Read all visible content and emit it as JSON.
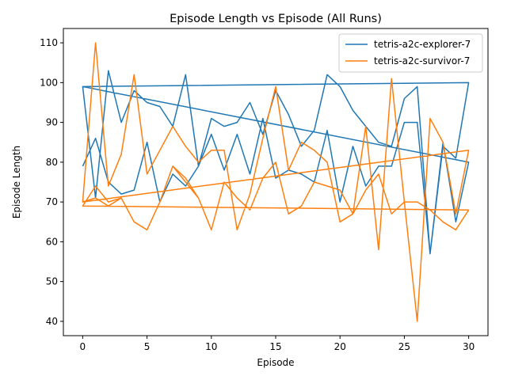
{
  "chart_data": {
    "type": "line",
    "title": "Episode Length vs Episode (All Runs)",
    "xlabel": "Episode",
    "ylabel": "Episode Length",
    "xlim": [
      -1.5,
      31.5
    ],
    "ylim": [
      36.4,
      113.6
    ],
    "xticks": [
      0,
      5,
      10,
      15,
      20,
      25,
      30
    ],
    "yticks": [
      40,
      50,
      60,
      70,
      80,
      90,
      100,
      110
    ],
    "grid": false,
    "legend_position": "top-right",
    "series": [
      {
        "name": "tetris-a2c-explorer-7",
        "color": "#1f77b4",
        "points": [
          [
            0,
            79
          ],
          [
            1,
            86
          ],
          [
            2,
            75
          ],
          [
            3,
            72
          ],
          [
            4,
            73
          ],
          [
            5,
            85
          ],
          [
            6,
            70
          ],
          [
            7,
            77
          ],
          [
            8,
            74
          ],
          [
            9,
            79
          ],
          [
            10,
            87
          ],
          [
            11,
            78
          ],
          [
            12,
            87
          ],
          [
            13,
            77
          ],
          [
            14,
            91
          ],
          [
            15,
            76
          ],
          [
            16,
            78
          ],
          [
            17,
            77
          ],
          [
            18,
            75
          ],
          [
            19,
            88
          ],
          [
            20,
            70
          ],
          [
            21,
            84
          ],
          [
            22,
            74
          ],
          [
            23,
            79
          ],
          [
            24,
            79
          ],
          [
            25,
            90
          ],
          [
            26,
            90
          ],
          [
            27,
            57
          ],
          [
            28,
            85
          ],
          [
            29,
            65
          ],
          [
            30,
            80
          ],
          [
            0,
            99
          ],
          [
            1,
            71
          ],
          [
            2,
            103
          ],
          [
            3,
            90
          ],
          [
            4,
            98
          ],
          [
            5,
            95
          ],
          [
            6,
            94
          ],
          [
            7,
            89
          ],
          [
            8,
            102
          ],
          [
            9,
            79
          ],
          [
            10,
            91
          ],
          [
            11,
            89
          ],
          [
            12,
            90
          ],
          [
            13,
            95
          ],
          [
            14,
            87
          ],
          [
            15,
            98
          ],
          [
            16,
            92
          ],
          [
            17,
            84
          ],
          [
            18,
            88
          ],
          [
            19,
            102
          ],
          [
            20,
            99
          ],
          [
            21,
            93
          ],
          [
            22,
            89
          ],
          [
            23,
            85
          ],
          [
            24,
            84
          ],
          [
            25,
            96
          ],
          [
            26,
            99
          ],
          [
            27,
            57
          ],
          [
            28,
            84
          ],
          [
            29,
            81
          ],
          [
            30,
            100
          ],
          [
            0,
            99
          ]
        ]
      },
      {
        "name": "tetris-a2c-survivor-7",
        "color": "#ff7f0e",
        "points": [
          [
            0,
            70
          ],
          [
            1,
            110
          ],
          [
            2,
            74
          ],
          [
            3,
            82
          ],
          [
            4,
            102
          ],
          [
            5,
            77
          ],
          [
            6,
            83
          ],
          [
            7,
            89
          ],
          [
            8,
            84
          ],
          [
            9,
            80
          ],
          [
            10,
            83
          ],
          [
            11,
            83
          ],
          [
            12,
            63
          ],
          [
            13,
            72
          ],
          [
            14,
            86
          ],
          [
            15,
            99
          ],
          [
            16,
            78
          ],
          [
            17,
            85
          ],
          [
            18,
            83
          ],
          [
            19,
            80
          ],
          [
            20,
            65
          ],
          [
            21,
            67
          ],
          [
            22,
            89
          ],
          [
            23,
            58
          ],
          [
            24,
            101
          ],
          [
            25,
            70
          ],
          [
            26,
            40
          ],
          [
            27,
            91
          ],
          [
            28,
            85
          ],
          [
            29,
            67
          ],
          [
            30,
            83
          ],
          [
            0,
            70
          ],
          [
            1,
            71
          ],
          [
            2,
            69
          ],
          [
            3,
            71
          ],
          [
            4,
            65
          ],
          [
            5,
            63
          ],
          [
            6,
            70
          ],
          [
            7,
            79
          ],
          [
            8,
            75
          ],
          [
            9,
            71
          ],
          [
            10,
            63
          ],
          [
            11,
            75
          ],
          [
            12,
            71
          ],
          [
            13,
            68
          ],
          [
            14,
            76
          ],
          [
            15,
            80
          ],
          [
            16,
            67
          ],
          [
            17,
            69
          ],
          [
            18,
            75
          ],
          [
            19,
            74
          ],
          [
            20,
            73
          ],
          [
            21,
            67
          ],
          [
            22,
            73
          ],
          [
            23,
            77
          ],
          [
            24,
            67
          ],
          [
            25,
            70
          ],
          [
            26,
            70
          ],
          [
            27,
            68
          ],
          [
            28,
            65
          ],
          [
            29,
            63
          ],
          [
            30,
            68
          ],
          [
            0,
            69
          ],
          [
            1,
            74
          ],
          [
            2,
            70
          ],
          [
            3,
            71
          ],
          [
            4,
            65
          ],
          [
            5,
            63
          ],
          [
            6,
            70
          ],
          [
            7,
            79
          ],
          [
            8,
            76
          ],
          [
            9,
            71
          ],
          [
            10,
            63
          ],
          [
            11,
            75
          ],
          [
            12,
            71
          ],
          [
            13,
            68
          ],
          [
            14,
            76
          ],
          [
            15,
            80
          ],
          [
            16,
            67
          ],
          [
            17,
            69
          ],
          [
            18,
            75
          ],
          [
            19,
            74
          ],
          [
            20,
            73
          ],
          [
            21,
            67
          ],
          [
            22,
            73
          ],
          [
            23,
            77
          ],
          [
            24,
            67
          ],
          [
            25,
            70
          ],
          [
            26,
            70
          ],
          [
            27,
            68
          ],
          [
            28,
            65
          ],
          [
            29,
            63
          ],
          [
            30,
            68
          ],
          [
            0,
            69
          ]
        ]
      }
    ]
  }
}
